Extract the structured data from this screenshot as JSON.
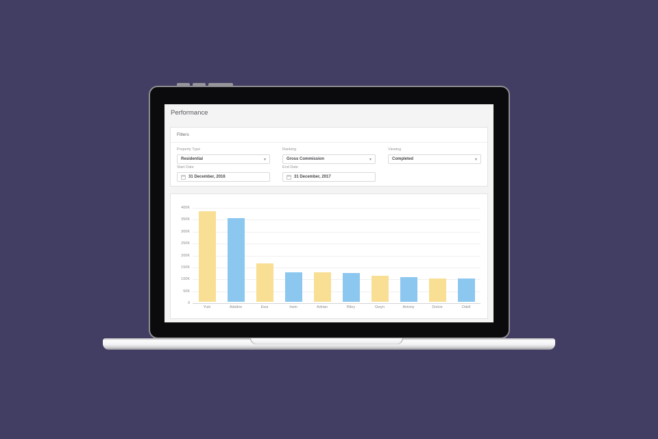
{
  "scene": {
    "background_color": "#423D62",
    "laptop_bezel_color": "#0b0b0d",
    "laptop_border_color": "#8e8e92"
  },
  "screen": {
    "title": "Performance",
    "filters": {
      "heading": "Filters",
      "selects": [
        {
          "label": "Property Type",
          "value": "Residential"
        },
        {
          "label": "Ranking",
          "value": "Gross Commission"
        },
        {
          "label": "Viewing",
          "value": "Completed"
        }
      ],
      "dates": [
        {
          "label": "Start Date",
          "value": "31 December, 2016"
        },
        {
          "label": "End Date",
          "value": "31 December, 2017"
        }
      ],
      "caret_glyph": "▾"
    }
  },
  "chart_data": {
    "type": "bar",
    "title": "",
    "xlabel": "",
    "ylabel": "",
    "categories": [
      "Yuki",
      "Adaline",
      "Ewa",
      "Irwin",
      "Adrian",
      "Riley",
      "Gwyn",
      "Antony",
      "Dulcie",
      "Odell"
    ],
    "values": [
      380000,
      352000,
      160000,
      125000,
      123000,
      120000,
      110000,
      104000,
      98000,
      97000
    ],
    "bar_colors_alternating": [
      "#F8DF94",
      "#8BC7EF"
    ],
    "ylim": [
      0,
      400000
    ],
    "ytick_step": 50000,
    "ytick_labels": [
      "0",
      "50K",
      "100K",
      "150K",
      "200K",
      "250K",
      "300K",
      "350K",
      "400K"
    ],
    "grid": true,
    "legend": false
  }
}
